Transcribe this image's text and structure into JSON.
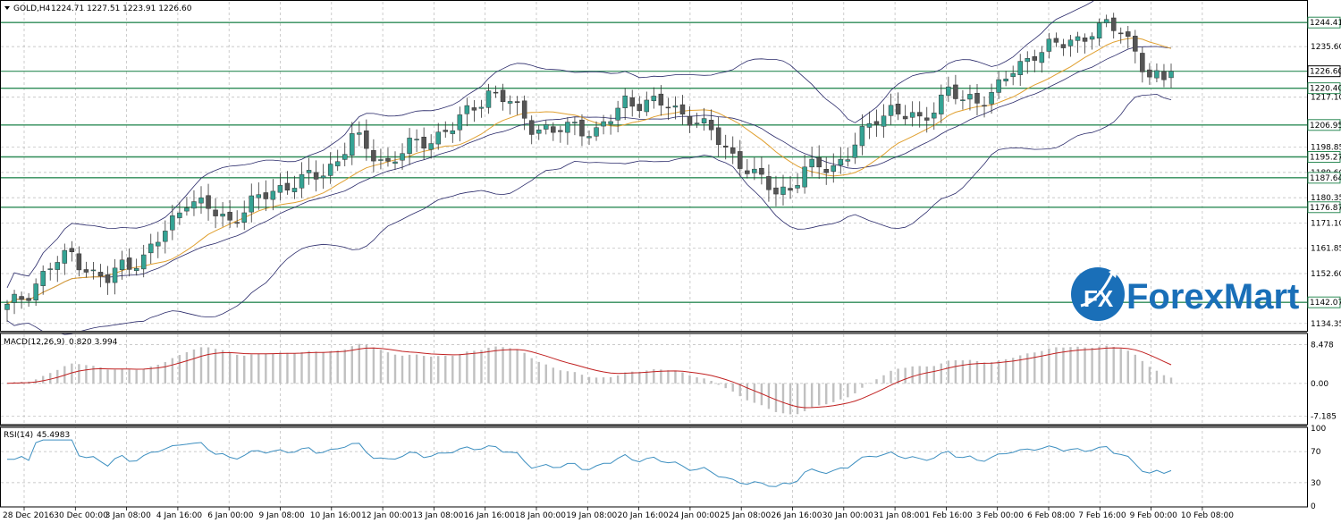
{
  "header": {
    "main_title": "GOLD,H4",
    "ohlc": "1224.71 1227.51 1223.91 1226.60",
    "macd_title": "MACD(12,26,9)",
    "macd_values": "0.820 3.994",
    "rsi_title": "RSI(14)",
    "rsi_value": "45.4983"
  },
  "logo": {
    "text": "ForexMart",
    "monogram": "FX"
  },
  "colors": {
    "bull": "#35a394",
    "bear": "#555555",
    "level": "#2e8b57",
    "ma": "#e0a030",
    "band": "#2a2a6a",
    "macd_hist": "#c0c0c0",
    "macd_signal": "#c02020",
    "rsi": "#3d8fc0",
    "grid": "#b8b8b8"
  },
  "chart_data": [
    {
      "type": "candlestick",
      "symbol": "GOLD",
      "timeframe": "H4",
      "ylim": [
        1132,
        1252
      ],
      "y_ticks": [
        "1235.60",
        "1217.10",
        "1198.85",
        "1189.60",
        "1180.35",
        "1171.10",
        "1161.85",
        "1152.60",
        "1134.35"
      ],
      "levels": [
        "1244.41",
        "1226.60",
        "1220.40",
        "1206.95",
        "1195.27",
        "1187.64",
        "1176.87",
        "1142.07"
      ],
      "level_values": [
        1244.41,
        1220.4,
        1206.95,
        1195.27,
        1187.64,
        1176.87,
        1142.07
      ],
      "current_price": "1226.60",
      "x_tick_labels": [
        "28 Dec 2016",
        "30 Dec 00:00",
        "3 Jan 08:00",
        "4 Jan 16:00",
        "6 Jan 00:00",
        "9 Jan 08:00",
        "10 Jan 16:00",
        "12 Jan 00:00",
        "13 Jan 08:00",
        "16 Jan 16:00",
        "18 Jan 00:00",
        "19 Jan 08:00",
        "20 Jan 16:00",
        "24 Jan 00:00",
        "25 Jan 08:00",
        "26 Jan 16:00",
        "30 Jan 00:00",
        "31 Jan 08:00",
        "1 Feb 16:00",
        "3 Feb 00:00",
        "6 Feb 08:00",
        "7 Feb 16:00",
        "9 Feb 00:00",
        "10 Feb 08:00"
      ],
      "close_anchors": [
        [
          0,
          1140
        ],
        [
          3,
          1146
        ],
        [
          6,
          1155
        ],
        [
          9,
          1160
        ],
        [
          12,
          1152
        ],
        [
          14,
          1150
        ],
        [
          16,
          1156
        ],
        [
          19,
          1158
        ],
        [
          22,
          1168
        ],
        [
          25,
          1180
        ],
        [
          28,
          1176
        ],
        [
          31,
          1172
        ],
        [
          34,
          1178
        ],
        [
          37,
          1183
        ],
        [
          40,
          1186
        ],
        [
          43,
          1188
        ],
        [
          46,
          1194
        ],
        [
          48,
          1203
        ],
        [
          50,
          1198
        ],
        [
          53,
          1193
        ],
        [
          56,
          1199
        ],
        [
          59,
          1202
        ],
        [
          62,
          1206
        ],
        [
          65,
          1214
        ],
        [
          67,
          1219
        ],
        [
          70,
          1215
        ],
        [
          73,
          1207
        ],
        [
          76,
          1204
        ],
        [
          79,
          1207
        ],
        [
          82,
          1204
        ],
        [
          84,
          1209
        ],
        [
          86,
          1216
        ],
        [
          89,
          1215
        ],
        [
          92,
          1214
        ],
        [
          95,
          1210
        ],
        [
          98,
          1204
        ],
        [
          101,
          1196
        ],
        [
          104,
          1188
        ],
        [
          107,
          1183
        ],
        [
          109,
          1184
        ],
        [
          111,
          1190
        ],
        [
          113,
          1192
        ],
        [
          115,
          1192
        ],
        [
          117,
          1196
        ],
        [
          119,
          1203
        ],
        [
          121,
          1210
        ],
        [
          123,
          1213
        ],
        [
          125,
          1210
        ],
        [
          127,
          1208
        ],
        [
          129,
          1214
        ],
        [
          131,
          1220
        ],
        [
          133,
          1215
        ],
        [
          135,
          1216
        ],
        [
          137,
          1219
        ],
        [
          139,
          1224
        ],
        [
          141,
          1228
        ],
        [
          143,
          1234
        ],
        [
          145,
          1236
        ],
        [
          147,
          1236
        ],
        [
          149,
          1238
        ],
        [
          151,
          1242
        ],
        [
          153,
          1243
        ],
        [
          155,
          1241
        ],
        [
          157,
          1235
        ],
        [
          159,
          1224
        ],
        [
          161,
          1223
        ],
        [
          162,
          1226.6
        ]
      ],
      "bollinger": {
        "period": 20,
        "deviations": 2
      },
      "moving_average": {
        "period": 14
      }
    },
    {
      "type": "histogram",
      "name": "MACD(12,26,9)",
      "values_shown": "0.820 3.994",
      "y_ticks": [
        "8.478",
        "0.00",
        "-7.185"
      ],
      "ylim": [
        -9,
        10.5
      ]
    },
    {
      "type": "line",
      "name": "RSI(14)",
      "value_shown": "45.4983",
      "y_ticks": [
        "100",
        "70",
        "30",
        "0"
      ],
      "ylim": [
        0,
        100
      ]
    }
  ]
}
